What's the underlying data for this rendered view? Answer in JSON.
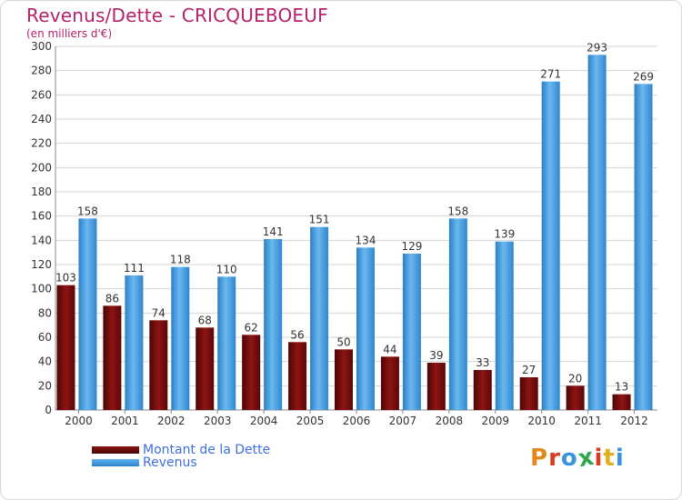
{
  "header": {
    "title": "Revenus/Dette - CRICQUEBOEUF",
    "subtitle": "(en milliers d'€)"
  },
  "chart_data": {
    "type": "bar",
    "title": "Revenus/Dette - CRICQUEBOEUF",
    "ylabel": "(en milliers d'€)",
    "xlabel": "",
    "ylim": [
      0,
      300
    ],
    "yticks": [
      0,
      20,
      40,
      60,
      80,
      100,
      120,
      140,
      160,
      180,
      200,
      220,
      240,
      260,
      280,
      300
    ],
    "grid": true,
    "legend_position": "bottom-left",
    "categories": [
      "2000",
      "2001",
      "2002",
      "2003",
      "2004",
      "2005",
      "2006",
      "2007",
      "2008",
      "2009",
      "2010",
      "2011",
      "2012"
    ],
    "series": [
      {
        "name": "Montant de la Dette",
        "color": "#6e0a0a",
        "values": [
          103,
          86,
          74,
          68,
          62,
          56,
          50,
          44,
          39,
          33,
          27,
          20,
          13
        ]
      },
      {
        "name": "Revenus",
        "color": "#3a93dd",
        "values": [
          158,
          111,
          118,
          110,
          141,
          151,
          134,
          129,
          158,
          139,
          271,
          293,
          269
        ]
      }
    ]
  },
  "legend": {
    "debt_label": "Montant de la Dette",
    "revenue_label": "Revenus"
  },
  "brand": {
    "logo_text": "Proxiti",
    "letter_colors": [
      "#e08a1e",
      "#d63c1f",
      "#3a93dd",
      "#2fa84f",
      "#d63c1f",
      "#e0b01e",
      "#3a93dd"
    ]
  }
}
